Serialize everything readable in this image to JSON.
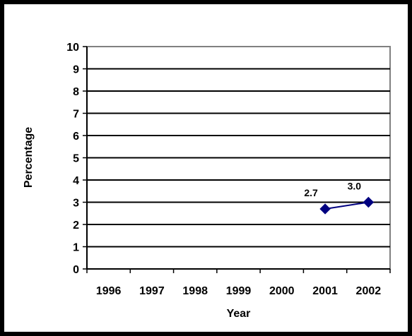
{
  "chart_data": {
    "type": "line",
    "title": "",
    "xlabel": "Year",
    "ylabel": "Percentage",
    "categories": [
      "1996",
      "1997",
      "1998",
      "1999",
      "2000",
      "2001",
      "2002"
    ],
    "series": [
      {
        "values": [
          null,
          null,
          null,
          null,
          null,
          2.7,
          3.0
        ],
        "data_labels": [
          "",
          "",
          "",
          "",
          "",
          "2.7",
          "3.0"
        ]
      }
    ],
    "ylim": [
      0,
      10
    ],
    "yticks": [
      "0",
      "1",
      "2",
      "3",
      "4",
      "5",
      "6",
      "7",
      "8",
      "9",
      "10"
    ],
    "grid": true,
    "legend": "none",
    "colors": {
      "series": "#000080",
      "gridline": "#000000",
      "plot_border": "#808080",
      "frame": "#000000",
      "background": "#ffffff"
    }
  }
}
